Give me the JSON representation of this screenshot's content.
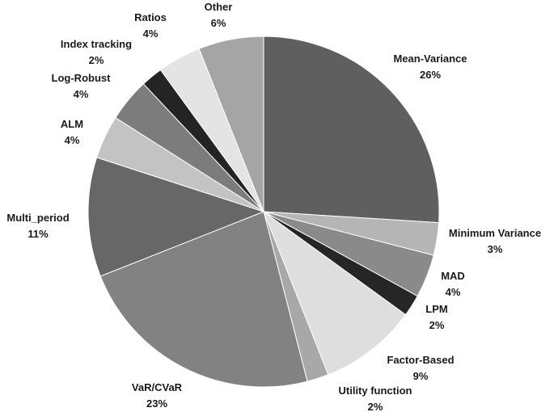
{
  "chart_data": {
    "type": "pie",
    "title": "",
    "start_angle_deg": 0,
    "direction": "clockwise",
    "slices": [
      {
        "label": "Mean-Variance",
        "value": 26,
        "value_label": "26%",
        "color": "#5f5f5f"
      },
      {
        "label": "Minimum Variance",
        "value": 3,
        "value_label": "3%",
        "color": "#b5b5b5"
      },
      {
        "label": "MAD",
        "value": 4,
        "value_label": "4%",
        "color": "#8a8a8a"
      },
      {
        "label": "LPM",
        "value": 2,
        "value_label": "2%",
        "color": "#262626"
      },
      {
        "label": "Factor-Based",
        "value": 9,
        "value_label": "9%",
        "color": "#dedede"
      },
      {
        "label": "Utility function",
        "value": 2,
        "value_label": "2%",
        "color": "#a8a8a8"
      },
      {
        "label": "VaR/CVaR",
        "value": 23,
        "value_label": "23%",
        "color": "#828282"
      },
      {
        "label": "Multi_period",
        "value": 11,
        "value_label": "11%",
        "color": "#676767"
      },
      {
        "label": "ALM",
        "value": 4,
        "value_label": "4%",
        "color": "#c3c3c3"
      },
      {
        "label": "Log-Robust",
        "value": 4,
        "value_label": "4%",
        "color": "#7c7c7c"
      },
      {
        "label": "Index tracking",
        "value": 2,
        "value_label": "2%",
        "color": "#242424"
      },
      {
        "label": "Ratios",
        "value": 4,
        "value_label": "4%",
        "color": "#e4e4e4"
      },
      {
        "label": "Other",
        "value": 6,
        "value_label": "6%",
        "color": "#a5a5a5"
      }
    ]
  }
}
